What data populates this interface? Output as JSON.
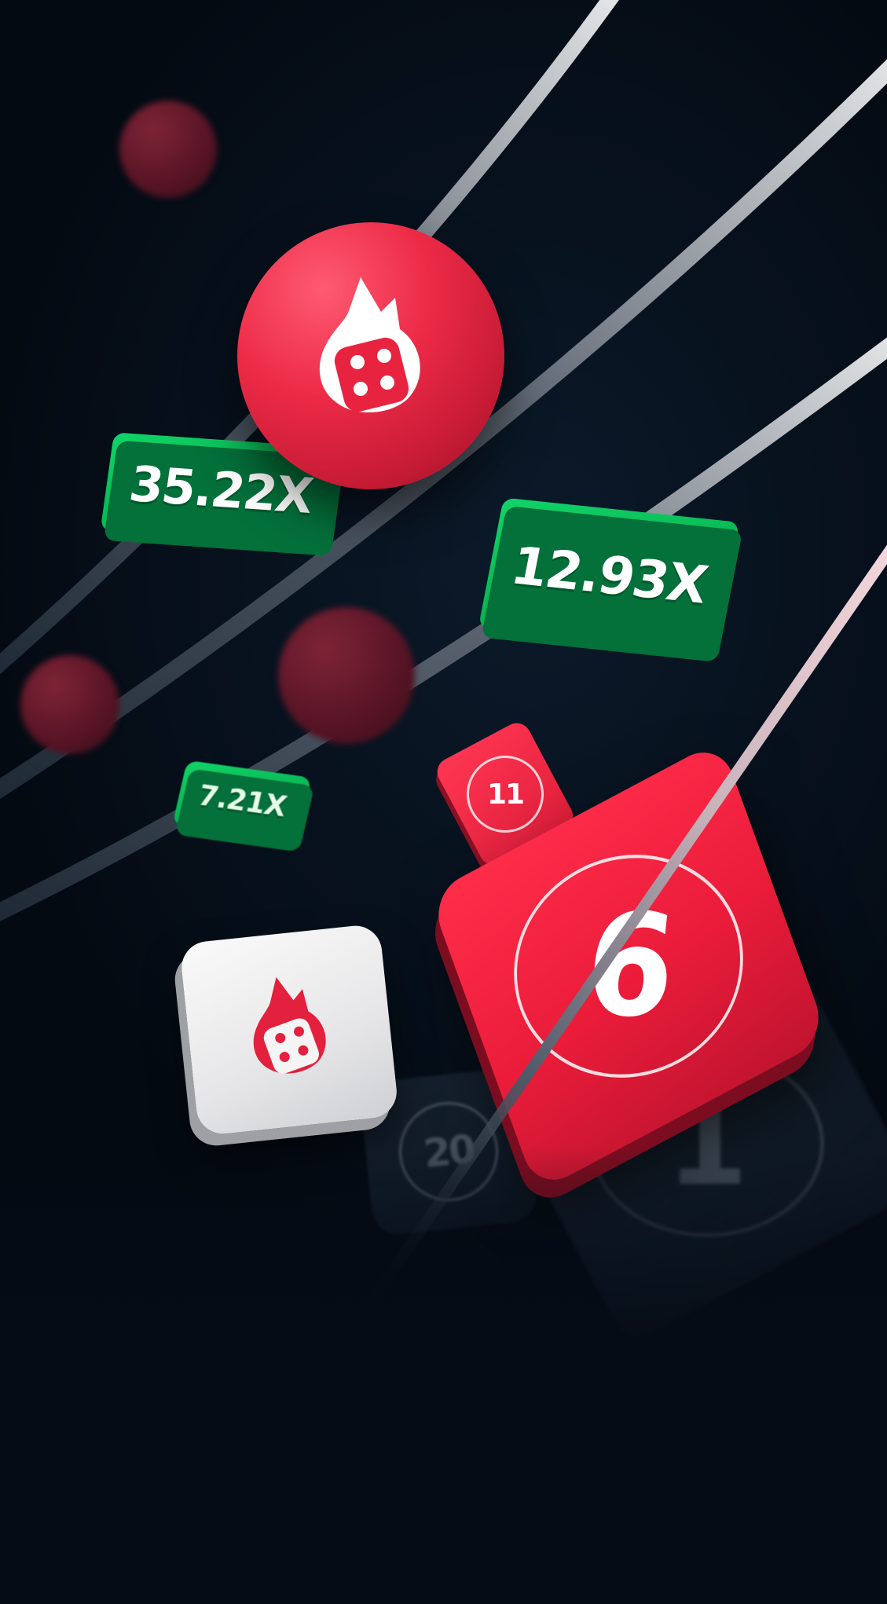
{
  "multipliers": {
    "large_left": "35.22X",
    "large_right": "12.93X",
    "small": "7.21X"
  },
  "tiles": {
    "small_red_number": "11",
    "big_red_number": "6",
    "dark_small_number": "20",
    "dark_large_number": "1"
  },
  "icons": {
    "ball_logo": "flame-dice-icon",
    "tile_logo": "flame-dice-icon"
  },
  "colors": {
    "background": "#050c16",
    "brand_red": "#ea1c3a",
    "multiplier_green": "#08b452",
    "tile_white": "#eeeeef"
  }
}
